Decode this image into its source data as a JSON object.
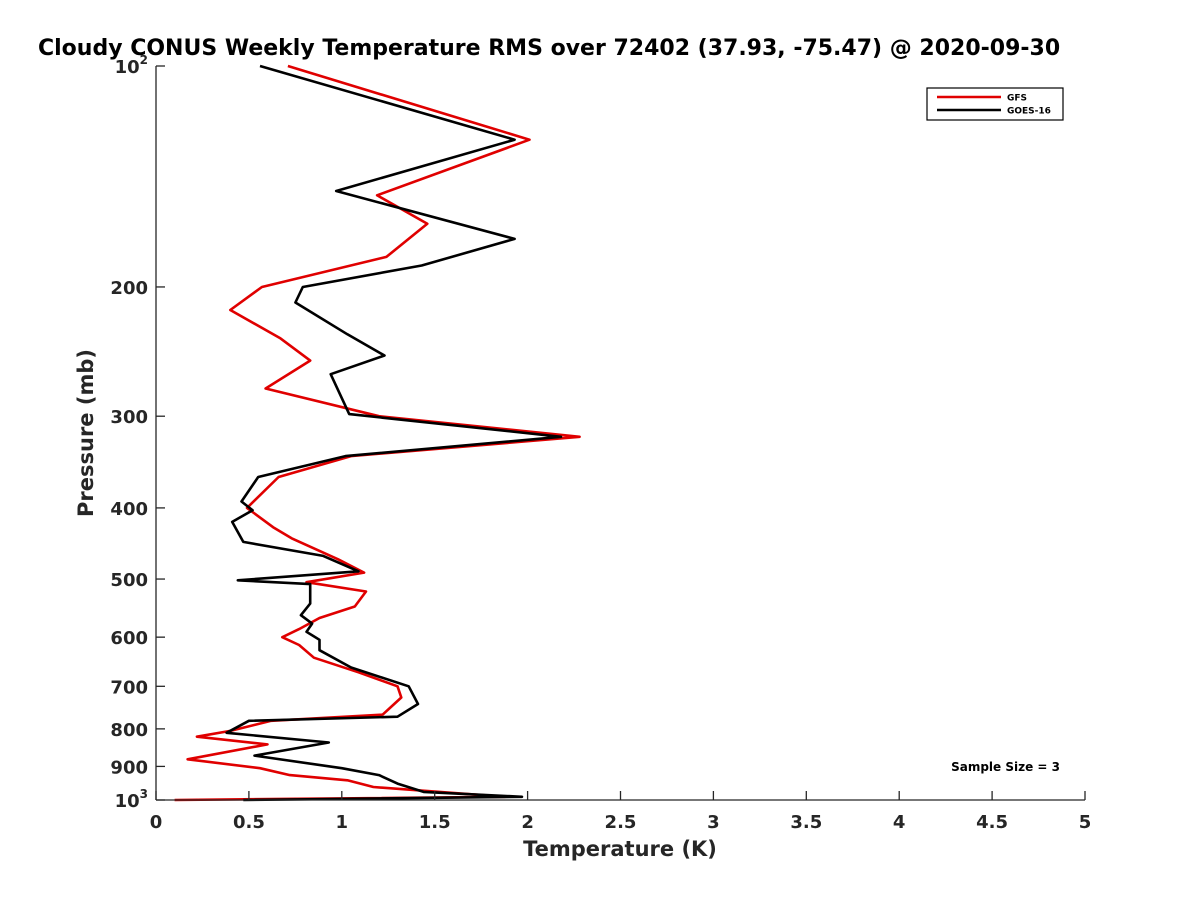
{
  "chart_data": {
    "type": "line",
    "title": "Cloudy CONUS Weekly Temperature RMS over 72402 (37.93, -75.47) @ 2020-09-30",
    "xlabel": "Temperature (K)",
    "ylabel": "Pressure (mb)",
    "xlim": [
      0,
      5
    ],
    "ylim": [
      100,
      1000
    ],
    "y_scale": "log",
    "y_reversed": true,
    "grid": false,
    "legend_position": "top-right",
    "x_ticks": [
      0,
      0.5,
      1,
      1.5,
      2,
      2.5,
      3,
      3.5,
      4,
      4.5,
      5
    ],
    "x_tick_labels": [
      "0",
      "0.5",
      "1",
      "1.5",
      "2",
      "2.5",
      "3",
      "3.5",
      "4",
      "4.5",
      "5"
    ],
    "y_ticks": [
      {
        "value": 100,
        "base": "10",
        "exp": "2"
      },
      {
        "value": 200,
        "label": "200"
      },
      {
        "value": 300,
        "label": "300"
      },
      {
        "value": 400,
        "label": "400"
      },
      {
        "value": 500,
        "label": "500"
      },
      {
        "value": 600,
        "label": "600"
      },
      {
        "value": 700,
        "label": "700"
      },
      {
        "value": 800,
        "label": "800"
      },
      {
        "value": 900,
        "label": "900"
      },
      {
        "value": 1000,
        "base": "10",
        "exp": "3"
      }
    ],
    "series": [
      {
        "name": "GFS",
        "color": "#e00000",
        "points": [
          [
            0.71,
            100
          ],
          [
            2.01,
            126
          ],
          [
            1.19,
            150
          ],
          [
            1.46,
            164
          ],
          [
            1.24,
            182
          ],
          [
            0.57,
            200
          ],
          [
            0.4,
            215
          ],
          [
            0.67,
            235
          ],
          [
            0.83,
            252
          ],
          [
            0.59,
            275
          ],
          [
            1.2,
            300
          ],
          [
            2.28,
            320
          ],
          [
            1.05,
            340
          ],
          [
            0.66,
            363
          ],
          [
            0.49,
            400
          ],
          [
            0.63,
            425
          ],
          [
            0.73,
            440
          ],
          [
            0.98,
            470
          ],
          [
            1.12,
            490
          ],
          [
            0.81,
            505
          ],
          [
            1.13,
            520
          ],
          [
            1.07,
            545
          ],
          [
            0.88,
            565
          ],
          [
            0.77,
            585
          ],
          [
            0.68,
            600
          ],
          [
            0.77,
            615
          ],
          [
            0.85,
            640
          ],
          [
            1.09,
            670
          ],
          [
            1.3,
            700
          ],
          [
            1.32,
            725
          ],
          [
            1.22,
            765
          ],
          [
            0.62,
            780
          ],
          [
            0.4,
            805
          ],
          [
            0.22,
            820
          ],
          [
            0.6,
            840
          ],
          [
            0.17,
            880
          ],
          [
            0.56,
            905
          ],
          [
            0.72,
            925
          ],
          [
            1.03,
            940
          ],
          [
            1.17,
            960
          ],
          [
            1.88,
            990
          ],
          [
            0.1,
            1000
          ]
        ]
      },
      {
        "name": "GOES-16",
        "color": "#000000",
        "points": [
          [
            0.56,
            100
          ],
          [
            1.93,
            126
          ],
          [
            0.97,
            148
          ],
          [
            1.93,
            172
          ],
          [
            1.43,
            187
          ],
          [
            0.79,
            200
          ],
          [
            0.75,
            210
          ],
          [
            1.03,
            232
          ],
          [
            1.23,
            248
          ],
          [
            0.94,
            263
          ],
          [
            1.04,
            298
          ],
          [
            2.18,
            320
          ],
          [
            1.02,
            340
          ],
          [
            0.55,
            363
          ],
          [
            0.46,
            392
          ],
          [
            0.52,
            403
          ],
          [
            0.41,
            418
          ],
          [
            0.47,
            445
          ],
          [
            0.9,
            465
          ],
          [
            1.09,
            488
          ],
          [
            0.44,
            502
          ],
          [
            0.83,
            508
          ],
          [
            0.83,
            540
          ],
          [
            0.78,
            560
          ],
          [
            0.84,
            575
          ],
          [
            0.81,
            590
          ],
          [
            0.88,
            605
          ],
          [
            0.88,
            625
          ],
          [
            1.05,
            660
          ],
          [
            1.36,
            700
          ],
          [
            1.41,
            740
          ],
          [
            1.3,
            770
          ],
          [
            0.5,
            780
          ],
          [
            0.38,
            810
          ],
          [
            0.93,
            835
          ],
          [
            0.53,
            870
          ],
          [
            1.0,
            905
          ],
          [
            1.2,
            925
          ],
          [
            1.3,
            950
          ],
          [
            1.44,
            975
          ],
          [
            1.97,
            990
          ],
          [
            0.47,
            1000
          ]
        ]
      }
    ],
    "annotation": "Sample Size = 3"
  }
}
